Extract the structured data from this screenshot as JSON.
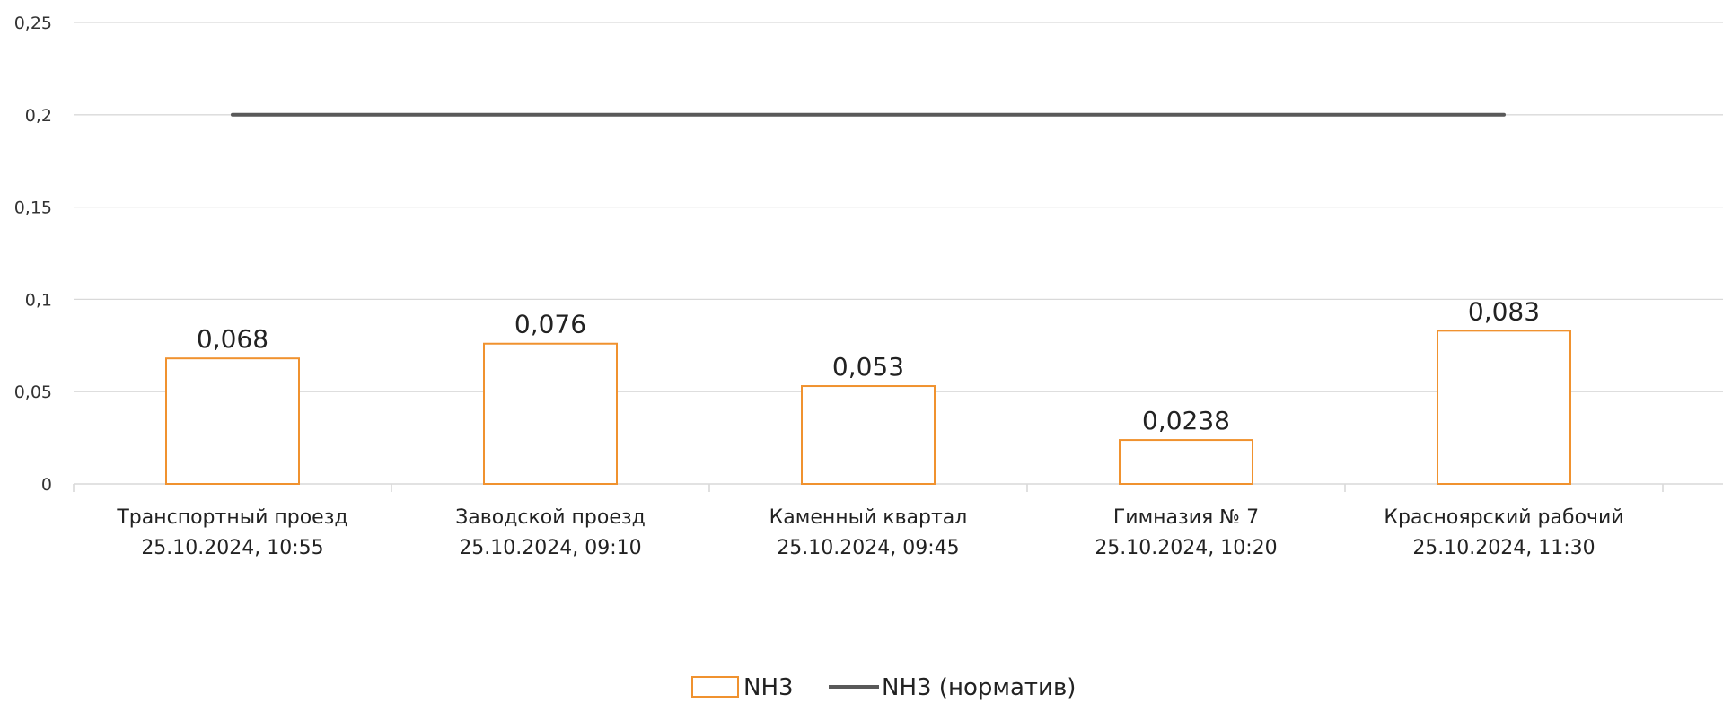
{
  "chart_data": {
    "type": "bar",
    "categories": [
      [
        "Транспортный проезд",
        "25.10.2024, 10:55"
      ],
      [
        "Заводской проезд",
        "25.10.2024, 09:10"
      ],
      [
        "Каменный квартал",
        "25.10.2024, 09:45"
      ],
      [
        "Гимназия № 7",
        "25.10.2024, 10:20"
      ],
      [
        "Красноярский рабочий",
        "25.10.2024, 11:30"
      ]
    ],
    "series": [
      {
        "name": "NH3",
        "type": "bar",
        "values": [
          0.068,
          0.076,
          0.053,
          0.0238,
          0.083
        ],
        "data_labels": [
          "0,068",
          "0,076",
          "0,053",
          "0,0238",
          "0,083"
        ],
        "color": "#F0922F",
        "fill": "#ffffff"
      },
      {
        "name": "NH3 (норматив)",
        "type": "line",
        "values": [
          0.2,
          0.2,
          0.2,
          0.2,
          0.2
        ],
        "color": "#595959"
      }
    ],
    "y_ticks": [
      0,
      0.05,
      0.1,
      0.15,
      0.2,
      0.25
    ],
    "y_tick_labels": [
      "0",
      "0,05",
      "0,1",
      "0,15",
      "0,2",
      "0,25"
    ],
    "ylim": [
      0,
      0.25
    ],
    "title": "",
    "xlabel": "",
    "ylabel": "",
    "grid": true,
    "grid_color": "#D9D9D9",
    "legend_position": "bottom"
  }
}
